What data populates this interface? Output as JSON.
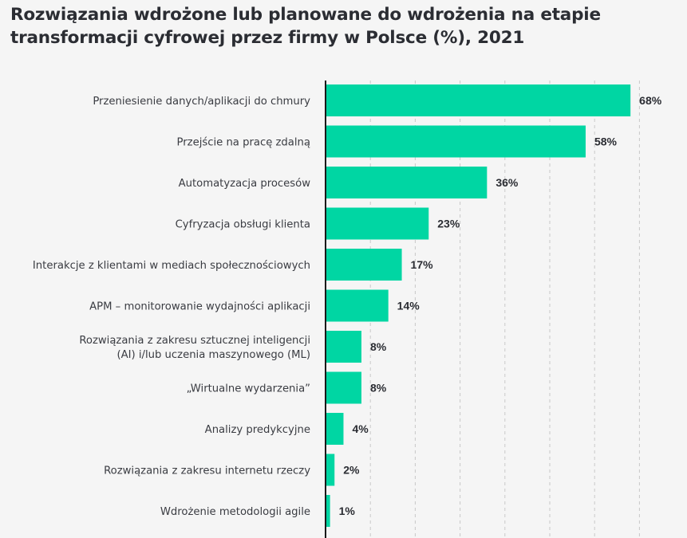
{
  "title": {
    "line1": "Rozwiązania wdrożone lub planowane do wdrożenia na etapie",
    "line2": "transformacji cyfrowej przez firmy w Polsce (%), 2021"
  },
  "colors": {
    "bar": "#00d6a3",
    "text": "#2b2d33",
    "grid": "#c8c8c8",
    "axis": "#1a1a1a",
    "background": "#f5f5f5"
  },
  "chart_data": {
    "type": "bar",
    "orientation": "horizontal",
    "categories": [
      "Przeniesienie danych/aplikacji do chmury",
      "Przejście na pracę zdalną",
      "Automatyzacja procesów",
      "Cyfryzacja obsługi klienta",
      "Interakcje z klientami w mediach społecznościowych",
      "APM – monitorowanie wydajności aplikacji",
      [
        "Rozwiązania z zakresu sztucznej inteligencji",
        "(AI) i/lub uczenia maszynowego (ML)"
      ],
      "„Wirtualne wydarzenia”",
      "Analizy predykcyjne",
      "Rozwiązania z zakresu internetu rzeczy",
      "Wdrożenie metodologii agile"
    ],
    "values": [
      68,
      58,
      36,
      23,
      17,
      14,
      8,
      8,
      4,
      2,
      1
    ],
    "value_labels": [
      "68%",
      "58%",
      "36%",
      "23%",
      "17%",
      "14%",
      "8%",
      "8%",
      "4%",
      "2%",
      "1%"
    ],
    "xlim": [
      0,
      70
    ],
    "grid": true,
    "grid_style": "dashed vertical",
    "title": "Rozwiązania wdrożone lub planowane do wdrożenia na etapie transformacji cyfrowej przez firmy w Polsce (%), 2021",
    "xlabel": "",
    "ylabel": ""
  }
}
